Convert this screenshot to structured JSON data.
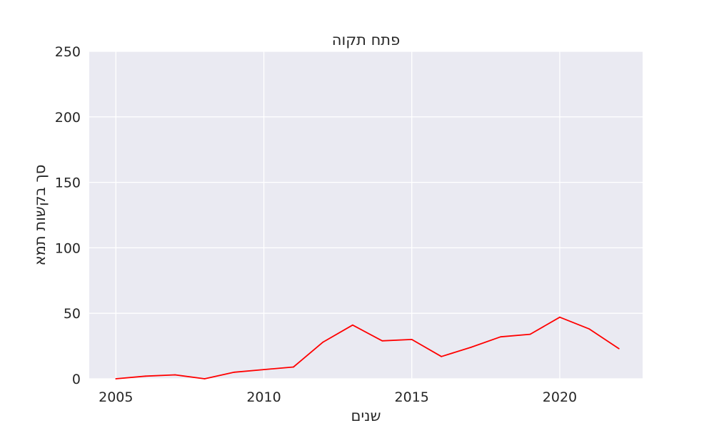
{
  "chart_data": {
    "type": "line",
    "title": "פתח תקוה",
    "xlabel": "שנים",
    "ylabel": "סך בקשות תמא",
    "x": [
      2005,
      2006,
      2007,
      2008,
      2009,
      2010,
      2011,
      2012,
      2013,
      2014,
      2015,
      2016,
      2017,
      2018,
      2019,
      2020,
      2021,
      2022
    ],
    "series": [
      {
        "values": [
          0,
          2,
          3,
          0,
          5,
          7,
          9,
          28,
          41,
          29,
          30,
          17,
          24,
          32,
          34,
          47,
          38,
          23
        ],
        "color": "#ff0000"
      }
    ],
    "xlim": [
      2004.1,
      2022.8
    ],
    "ylim": [
      0,
      250
    ],
    "xticks": [
      2005,
      2010,
      2015,
      2020
    ],
    "yticks": [
      0,
      50,
      100,
      150,
      200,
      250
    ],
    "grid": true,
    "background_color": "#eaeaf2",
    "grid_color": "#ffffff"
  }
}
